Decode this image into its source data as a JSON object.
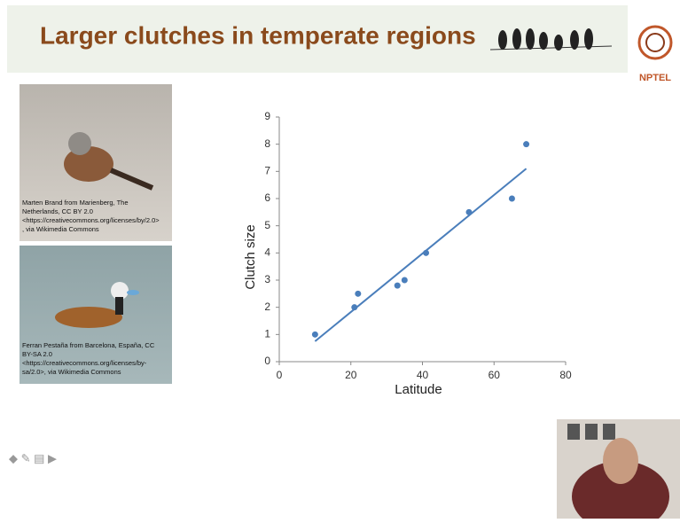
{
  "slide": {
    "title": "Larger clutches in temperate regions",
    "logo": "NPTEL",
    "captions": [
      [
        "Marten Brand from Marienberg, The",
        "Netherlands, CC BY 2.0",
        "<https://creativecommons.org/licenses/by/2.0>",
        ", via Wikimedia Commons"
      ],
      [
        "Ferran Pestaña from Barcelona, España, CC",
        "BY-SA 2.0",
        "<https://creativecommons.org/licenses/by-",
        "sa/2.0>, via Wikimedia Commons"
      ]
    ]
  },
  "chart_data": {
    "type": "scatter",
    "xlabel": "Latitude",
    "ylabel": "Clutch size",
    "x": [
      10,
      21,
      22,
      33,
      35,
      41,
      53,
      65,
      69
    ],
    "values": [
      1,
      2,
      2.5,
      2.8,
      3,
      4,
      5.5,
      6,
      8
    ],
    "color": "#4a7ebb",
    "trendline": {
      "x": [
        10,
        69
      ],
      "y": [
        0.75,
        7.1
      ]
    },
    "xlim": [
      0,
      80
    ],
    "xticks": [
      0,
      20,
      40,
      60,
      80
    ],
    "ylim": [
      0,
      9
    ],
    "yticks": [
      0,
      1,
      2,
      3,
      4,
      5,
      6,
      7,
      8,
      9
    ]
  }
}
